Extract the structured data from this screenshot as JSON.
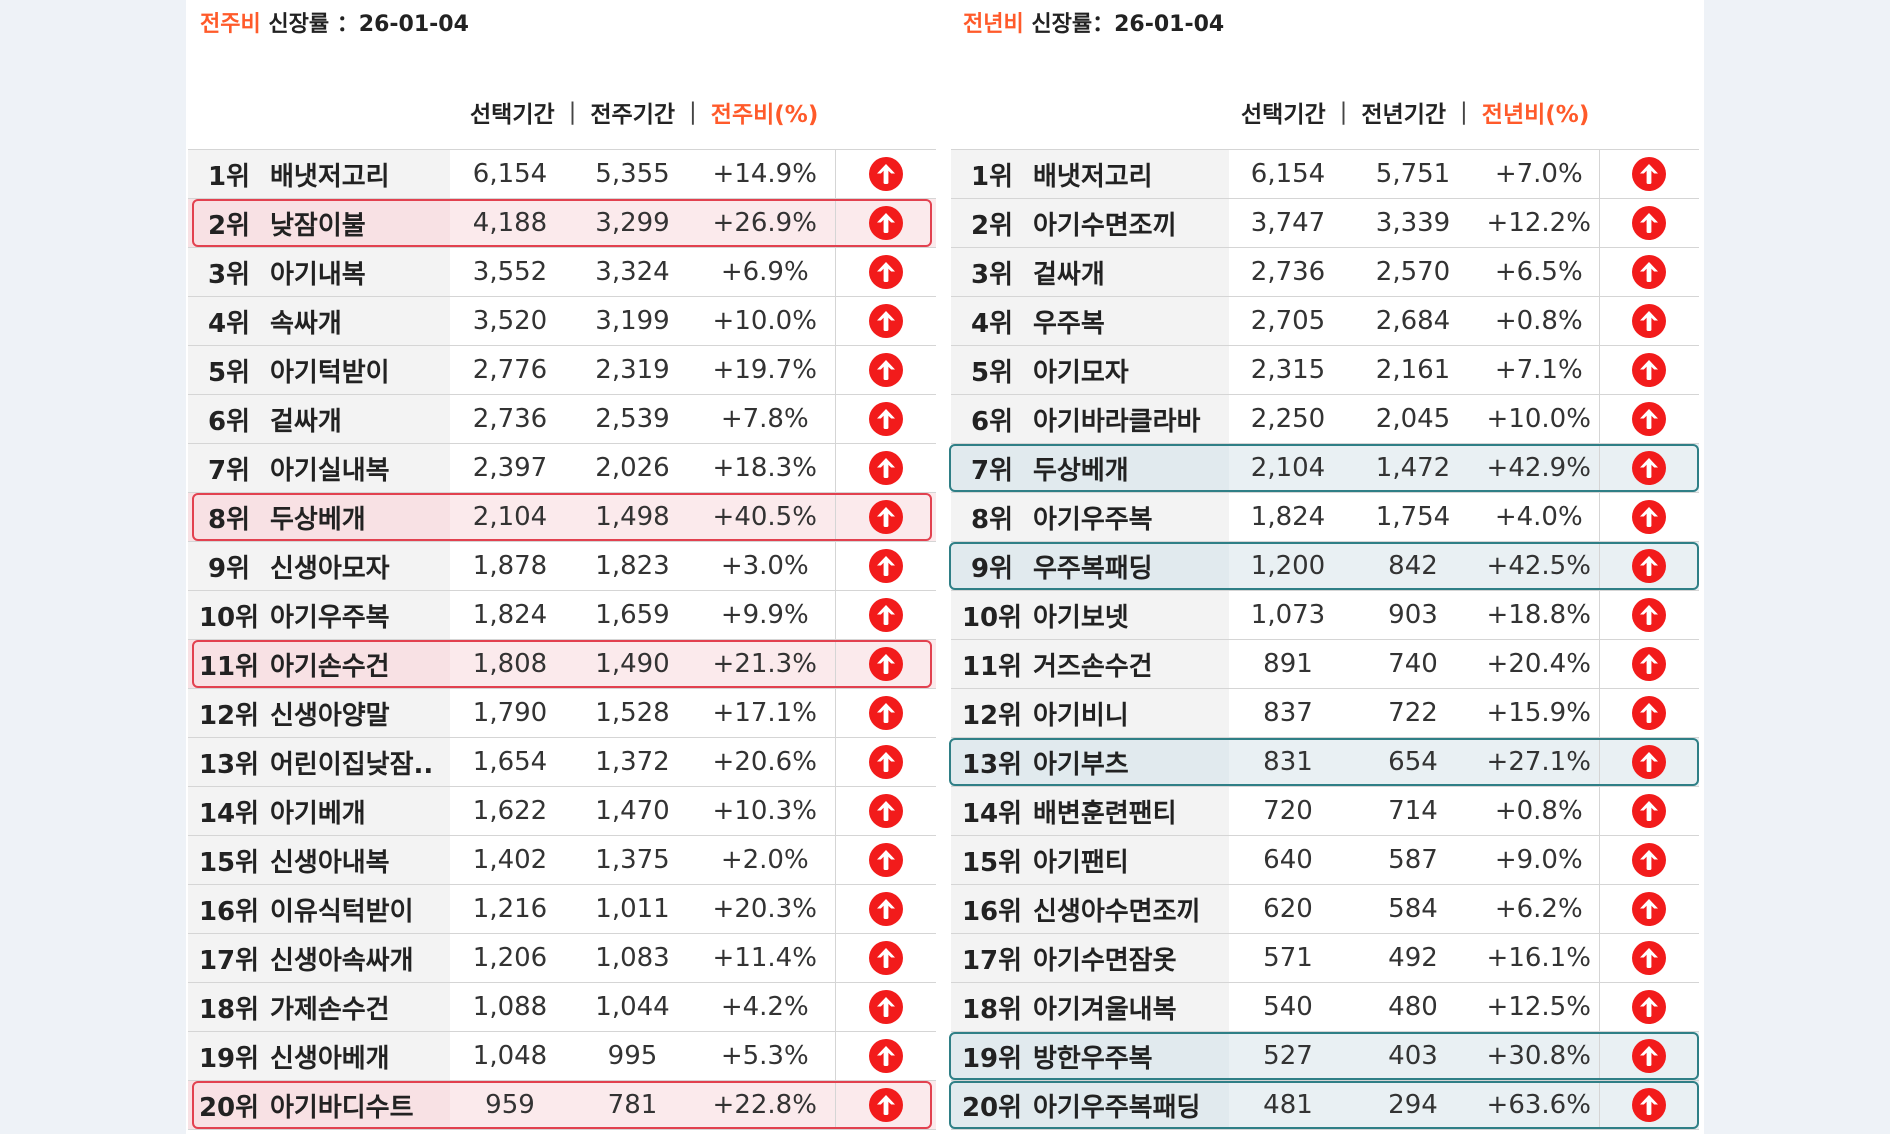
{
  "colors": {
    "accent": "#ff5a2a",
    "up_icon": "#f21b1b",
    "highlight_red": "#e2414f",
    "highlight_teal": "#2f7f86"
  },
  "icons": {
    "up": "arrow-up-circle-icon"
  },
  "left": {
    "title_accent": "전주비",
    "title_rest": " 신장률 ：26-01-04",
    "headers": {
      "selected": "선택기간",
      "compare": "전주기간",
      "ratio": "전주비(%)",
      "separator": "|"
    },
    "highlight_ranks": [
      2,
      8,
      11,
      20
    ],
    "rows": [
      {
        "rank": "1위",
        "name": "배냇저고리",
        "cur": "6,154",
        "prev": "5,355",
        "pct": "+14.9%"
      },
      {
        "rank": "2위",
        "name": "낮잠이불",
        "cur": "4,188",
        "prev": "3,299",
        "pct": "+26.9%"
      },
      {
        "rank": "3위",
        "name": "아기내복",
        "cur": "3,552",
        "prev": "3,324",
        "pct": "+6.9%"
      },
      {
        "rank": "4위",
        "name": "속싸개",
        "cur": "3,520",
        "prev": "3,199",
        "pct": "+10.0%"
      },
      {
        "rank": "5위",
        "name": "아기턱받이",
        "cur": "2,776",
        "prev": "2,319",
        "pct": "+19.7%"
      },
      {
        "rank": "6위",
        "name": "겉싸개",
        "cur": "2,736",
        "prev": "2,539",
        "pct": "+7.8%"
      },
      {
        "rank": "7위",
        "name": "아기실내복",
        "cur": "2,397",
        "prev": "2,026",
        "pct": "+18.3%"
      },
      {
        "rank": "8위",
        "name": "두상베개",
        "cur": "2,104",
        "prev": "1,498",
        "pct": "+40.5%"
      },
      {
        "rank": "9위",
        "name": "신생아모자",
        "cur": "1,878",
        "prev": "1,823",
        "pct": "+3.0%"
      },
      {
        "rank": "10위",
        "name": "아기우주복",
        "cur": "1,824",
        "prev": "1,659",
        "pct": "+9.9%"
      },
      {
        "rank": "11위",
        "name": "아기손수건",
        "cur": "1,808",
        "prev": "1,490",
        "pct": "+21.3%"
      },
      {
        "rank": "12위",
        "name": "신생아양말",
        "cur": "1,790",
        "prev": "1,528",
        "pct": "+17.1%"
      },
      {
        "rank": "13위",
        "name": "어린이집낮잠..",
        "cur": "1,654",
        "prev": "1,372",
        "pct": "+20.6%"
      },
      {
        "rank": "14위",
        "name": "아기베개",
        "cur": "1,622",
        "prev": "1,470",
        "pct": "+10.3%"
      },
      {
        "rank": "15위",
        "name": "신생아내복",
        "cur": "1,402",
        "prev": "1,375",
        "pct": "+2.0%"
      },
      {
        "rank": "16위",
        "name": "이유식턱받이",
        "cur": "1,216",
        "prev": "1,011",
        "pct": "+20.3%"
      },
      {
        "rank": "17위",
        "name": "신생아속싸개",
        "cur": "1,206",
        "prev": "1,083",
        "pct": "+11.4%"
      },
      {
        "rank": "18위",
        "name": "가제손수건",
        "cur": "1,088",
        "prev": "1,044",
        "pct": "+4.2%"
      },
      {
        "rank": "19위",
        "name": "신생아베개",
        "cur": "1,048",
        "prev": "995",
        "pct": "+5.3%"
      },
      {
        "rank": "20위",
        "name": "아기바디수트",
        "cur": "959",
        "prev": "781",
        "pct": "+22.8%"
      }
    ]
  },
  "right": {
    "title_accent": "전년비",
    "title_rest": " 신장률：26-01-04",
    "headers": {
      "selected": "선택기간",
      "compare": "전년기간",
      "ratio": "전년비(%)",
      "separator": "|"
    },
    "highlight_ranks": [
      7,
      9,
      13,
      19,
      20
    ],
    "rows": [
      {
        "rank": "1위",
        "name": "배냇저고리",
        "cur": "6,154",
        "prev": "5,751",
        "pct": "+7.0%"
      },
      {
        "rank": "2위",
        "name": "아기수면조끼",
        "cur": "3,747",
        "prev": "3,339",
        "pct": "+12.2%"
      },
      {
        "rank": "3위",
        "name": "겉싸개",
        "cur": "2,736",
        "prev": "2,570",
        "pct": "+6.5%"
      },
      {
        "rank": "4위",
        "name": "우주복",
        "cur": "2,705",
        "prev": "2,684",
        "pct": "+0.8%"
      },
      {
        "rank": "5위",
        "name": "아기모자",
        "cur": "2,315",
        "prev": "2,161",
        "pct": "+7.1%"
      },
      {
        "rank": "6위",
        "name": "아기바라클라바",
        "cur": "2,250",
        "prev": "2,045",
        "pct": "+10.0%"
      },
      {
        "rank": "7위",
        "name": "두상베개",
        "cur": "2,104",
        "prev": "1,472",
        "pct": "+42.9%"
      },
      {
        "rank": "8위",
        "name": "아기우주복",
        "cur": "1,824",
        "prev": "1,754",
        "pct": "+4.0%"
      },
      {
        "rank": "9위",
        "name": "우주복패딩",
        "cur": "1,200",
        "prev": "842",
        "pct": "+42.5%"
      },
      {
        "rank": "10위",
        "name": "아기보넷",
        "cur": "1,073",
        "prev": "903",
        "pct": "+18.8%"
      },
      {
        "rank": "11위",
        "name": "거즈손수건",
        "cur": "891",
        "prev": "740",
        "pct": "+20.4%"
      },
      {
        "rank": "12위",
        "name": "아기비니",
        "cur": "837",
        "prev": "722",
        "pct": "+15.9%"
      },
      {
        "rank": "13위",
        "name": "아기부츠",
        "cur": "831",
        "prev": "654",
        "pct": "+27.1%"
      },
      {
        "rank": "14위",
        "name": "배변훈련팬티",
        "cur": "720",
        "prev": "714",
        "pct": "+0.8%"
      },
      {
        "rank": "15위",
        "name": "아기팬티",
        "cur": "640",
        "prev": "587",
        "pct": "+9.0%"
      },
      {
        "rank": "16위",
        "name": "신생아수면조끼",
        "cur": "620",
        "prev": "584",
        "pct": "+6.2%"
      },
      {
        "rank": "17위",
        "name": "아기수면잠옷",
        "cur": "571",
        "prev": "492",
        "pct": "+16.1%"
      },
      {
        "rank": "18위",
        "name": "아기겨울내복",
        "cur": "540",
        "prev": "480",
        "pct": "+12.5%"
      },
      {
        "rank": "19위",
        "name": "방한우주복",
        "cur": "527",
        "prev": "403",
        "pct": "+30.8%"
      },
      {
        "rank": "20위",
        "name": "아기우주복패딩",
        "cur": "481",
        "prev": "294",
        "pct": "+63.6%"
      }
    ]
  }
}
